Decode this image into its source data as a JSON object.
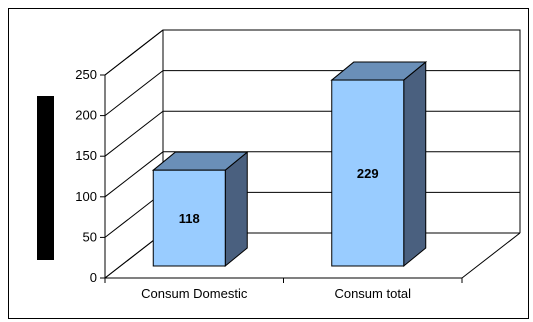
{
  "chart_data": {
    "type": "bar",
    "title": "",
    "xlabel": "",
    "ylabel": "",
    "categories": [
      "Consum Domestic",
      "Consum total"
    ],
    "values": [
      118,
      229
    ],
    "value_labels": [
      "118",
      "229"
    ],
    "ylim": [
      0,
      250
    ],
    "yticks": [
      0,
      50,
      100,
      150,
      200,
      250
    ],
    "ytick_labels": [
      "0",
      "50",
      "100",
      "150",
      "200",
      "250"
    ],
    "grid": true,
    "three_d": true,
    "legend": "left",
    "colors": {
      "bar_front": "#99ccff",
      "bar_top": "#6a8fb8",
      "bar_side": "#4a607f",
      "legend_swatch": "#000000",
      "gridline": "#000000"
    }
  }
}
